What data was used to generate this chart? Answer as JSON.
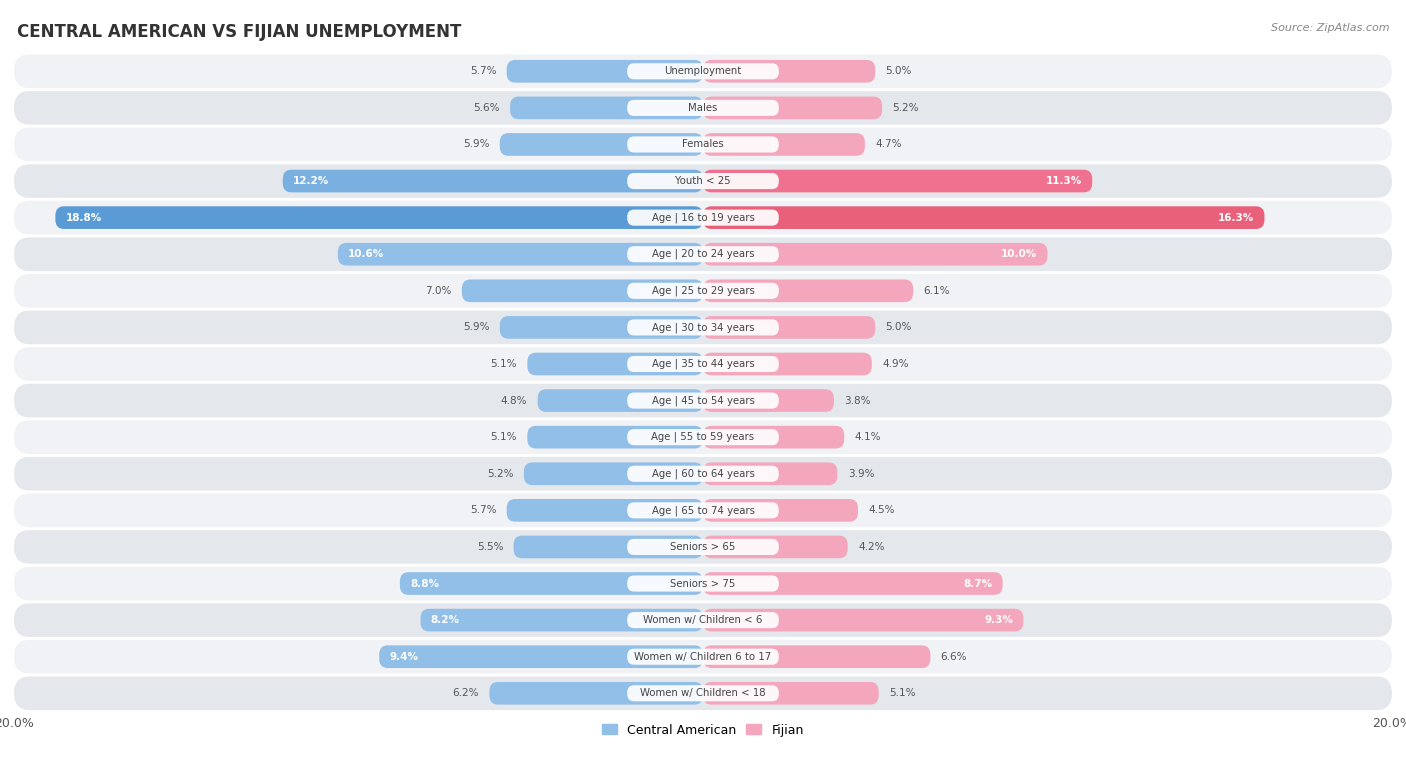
{
  "title": "CENTRAL AMERICAN VS FIJIAN UNEMPLOYMENT",
  "source": "Source: ZipAtlas.com",
  "categories": [
    "Unemployment",
    "Males",
    "Females",
    "Youth < 25",
    "Age | 16 to 19 years",
    "Age | 20 to 24 years",
    "Age | 25 to 29 years",
    "Age | 30 to 34 years",
    "Age | 35 to 44 years",
    "Age | 45 to 54 years",
    "Age | 55 to 59 years",
    "Age | 60 to 64 years",
    "Age | 65 to 74 years",
    "Seniors > 65",
    "Seniors > 75",
    "Women w/ Children < 6",
    "Women w/ Children 6 to 17",
    "Women w/ Children < 18"
  ],
  "central_american": [
    5.7,
    5.6,
    5.9,
    12.2,
    18.8,
    10.6,
    7.0,
    5.9,
    5.1,
    4.8,
    5.1,
    5.2,
    5.7,
    5.5,
    8.8,
    8.2,
    9.4,
    6.2
  ],
  "fijian": [
    5.0,
    5.2,
    4.7,
    11.3,
    16.3,
    10.0,
    6.1,
    5.0,
    4.9,
    3.8,
    4.1,
    3.9,
    4.5,
    4.2,
    8.7,
    9.3,
    6.6,
    5.1
  ],
  "ca_color_normal": "#92bfe8",
  "ca_color_medium": "#7ab0e0",
  "ca_color_large": "#5b9bd5",
  "fijian_color_normal": "#f4a7bc",
  "fijian_color_medium": "#f07090",
  "fijian_color_large": "#e8607a",
  "max_val": 20.0,
  "row_bg_light": "#f0f2f5",
  "row_bg_dark": "#e4e8ed",
  "label_inside_color": "#ffffff",
  "label_outside_color": "#555555",
  "inside_threshold": 8.0
}
